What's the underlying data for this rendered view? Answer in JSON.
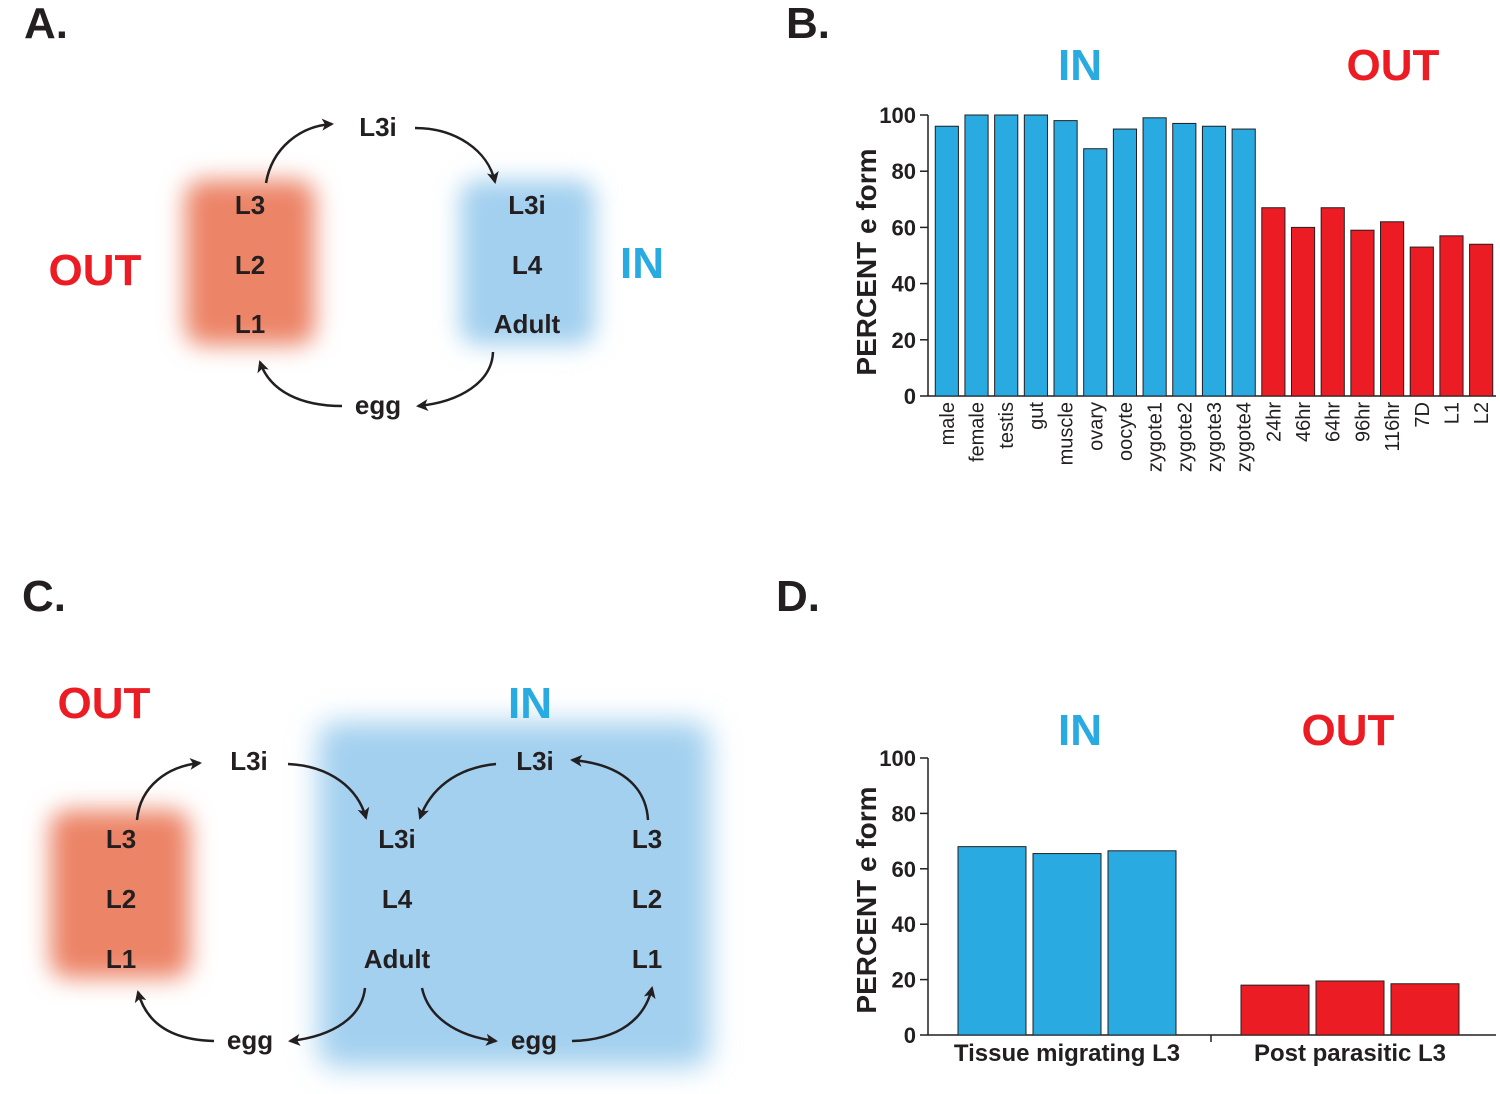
{
  "colors": {
    "in": "#29abe2",
    "out": "#ec1c24",
    "in_glow": "#a3d0ef",
    "out_glow": "#ec8468",
    "text": "#231f20"
  },
  "panel_letters": {
    "a": "A.",
    "b": "B.",
    "c": "C.",
    "d": "D."
  },
  "panel_a": {
    "out_label": "OUT",
    "in_label": "IN",
    "top": "L3i",
    "bottom": "egg",
    "out_stages": [
      "L3",
      "L2",
      "L1"
    ],
    "in_stages": [
      "L3i",
      "L4",
      "Adult"
    ]
  },
  "panel_c": {
    "out_label": "OUT",
    "in_label": "IN",
    "top_left": "L3i",
    "top_right": "L3i",
    "egg_left": "egg",
    "egg_right": "egg",
    "out_stages": [
      "L3",
      "L2",
      "L1"
    ],
    "in_stages": [
      "L3i",
      "L4",
      "Adult"
    ],
    "right_stages": [
      "L3",
      "L2",
      "L1"
    ]
  },
  "chart_data": [
    {
      "panel": "B",
      "type": "bar",
      "group_labels": {
        "in": "IN",
        "out": "OUT"
      },
      "ylabel": "PERCENT e form",
      "ylim": [
        0,
        100
      ],
      "yticks": [
        0,
        20,
        40,
        60,
        80,
        100
      ],
      "categories": [
        "male",
        "female",
        "testis",
        "gut",
        "muscle",
        "ovary",
        "oocyte",
        "zygote1",
        "zygote2",
        "zygote3",
        "zygote4",
        "24hr",
        "46hr",
        "64hr",
        "96hr",
        "116hr",
        "7D",
        "L1",
        "L2"
      ],
      "values": [
        96,
        100,
        100,
        100,
        98,
        88,
        95,
        99,
        97,
        96,
        95,
        67,
        60,
        67,
        59,
        62,
        53,
        57,
        54
      ],
      "groups": [
        "in",
        "in",
        "in",
        "in",
        "in",
        "in",
        "in",
        "in",
        "in",
        "in",
        "in",
        "out",
        "out",
        "out",
        "out",
        "out",
        "out",
        "out",
        "out"
      ]
    },
    {
      "panel": "D",
      "type": "bar",
      "group_labels": {
        "in": "IN",
        "out": "OUT"
      },
      "ylabel": "PERCENT e form",
      "ylim": [
        0,
        100
      ],
      "yticks": [
        0,
        20,
        40,
        60,
        80,
        100
      ],
      "categories": [
        "Tissue migrating L3",
        "Post parasitic L3"
      ],
      "series_values": [
        [
          68,
          65.5,
          66.5
        ],
        [
          18,
          19.5,
          18.5
        ]
      ],
      "groups": [
        "in",
        "out"
      ]
    }
  ]
}
